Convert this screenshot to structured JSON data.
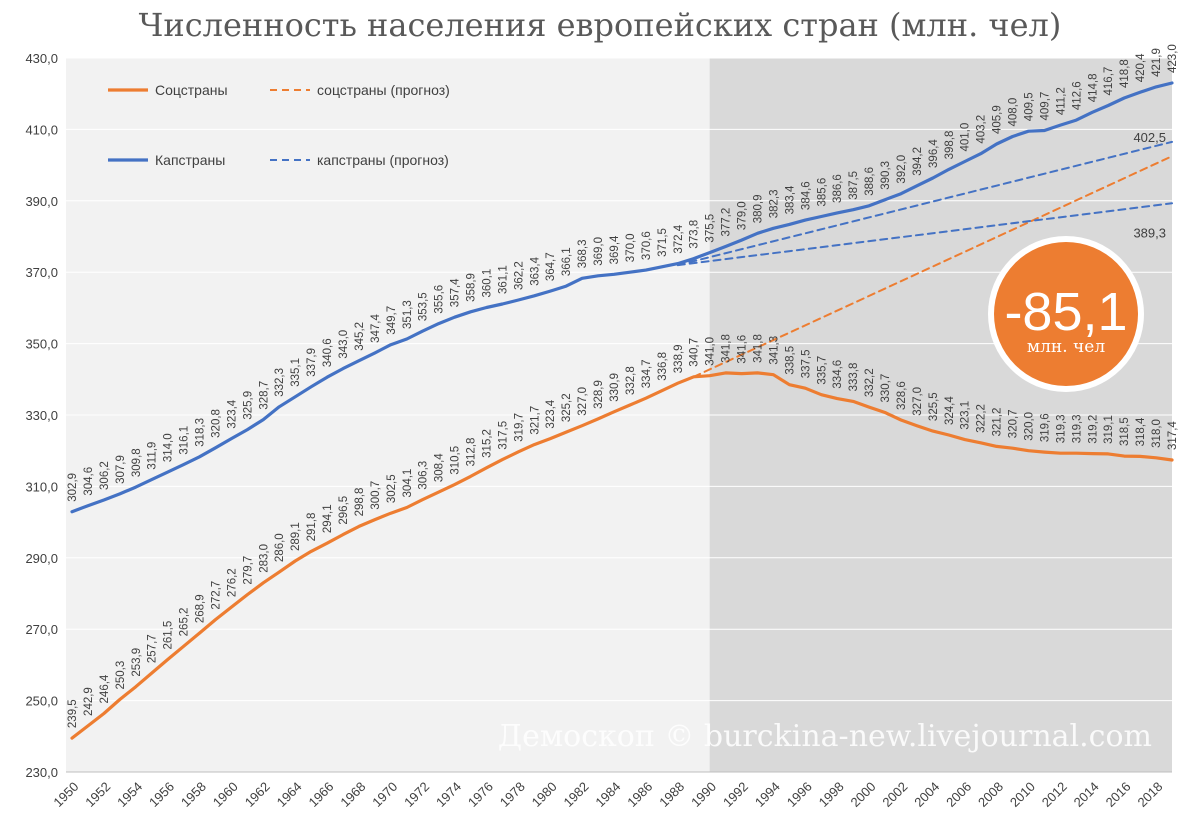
{
  "chart_data": {
    "type": "line",
    "title": "Численность населения европейских стран (млн. чел)",
    "ylim": [
      230,
      430
    ],
    "y_ticks": [
      "230,0",
      "250,0",
      "270,0",
      "290,0",
      "310,0",
      "330,0",
      "350,0",
      "370,0",
      "390,0",
      "410,0",
      "430,0"
    ],
    "x_ticks": [
      "1950",
      "1952",
      "1954",
      "1956",
      "1958",
      "1960",
      "1962",
      "1964",
      "1966",
      "1968",
      "1970",
      "1972",
      "1974",
      "1976",
      "1978",
      "1980",
      "1982",
      "1984",
      "1986",
      "1988",
      "1990",
      "1992",
      "1994",
      "1996",
      "1998",
      "2000",
      "2002",
      "2004",
      "2006",
      "2008",
      "2010",
      "2012",
      "2014",
      "2016",
      "2018"
    ],
    "x": [
      1950,
      1951,
      1952,
      1953,
      1954,
      1955,
      1956,
      1957,
      1958,
      1959,
      1960,
      1961,
      1962,
      1963,
      1964,
      1965,
      1966,
      1967,
      1968,
      1969,
      1970,
      1971,
      1972,
      1973,
      1974,
      1975,
      1976,
      1977,
      1978,
      1979,
      1980,
      1981,
      1982,
      1983,
      1984,
      1985,
      1986,
      1987,
      1988,
      1989,
      1990,
      1991,
      1992,
      1993,
      1994,
      1995,
      1996,
      1997,
      1998,
      1999,
      2000,
      2001,
      2002,
      2003,
      2004,
      2005,
      2006,
      2007,
      2008,
      2009,
      2010,
      2011,
      2012,
      2013,
      2014,
      2015,
      2016,
      2017,
      2018,
      2019
    ],
    "shaded_region": [
      1990,
      2019
    ],
    "grid": true,
    "legend_position": "top-left",
    "series": [
      {
        "name": "Соцстраны",
        "color": "#ED7D31",
        "style": "solid",
        "values": [
          239.5,
          242.9,
          246.4,
          250.3,
          253.9,
          257.7,
          261.5,
          265.2,
          268.9,
          272.7,
          276.2,
          279.7,
          283.0,
          286.0,
          289.1,
          291.8,
          294.1,
          296.5,
          298.8,
          300.7,
          302.5,
          304.1,
          306.3,
          308.4,
          310.5,
          312.8,
          315.2,
          317.5,
          319.7,
          321.7,
          323.4,
          325.2,
          327.0,
          328.9,
          330.9,
          332.8,
          334.7,
          336.8,
          338.9,
          340.7,
          341.0,
          341.8,
          341.6,
          341.8,
          341.3,
          338.5,
          337.5,
          335.7,
          334.6,
          333.8,
          332.2,
          330.7,
          328.6,
          327.0,
          325.5,
          324.4,
          323.1,
          322.2,
          321.2,
          320.7,
          320.0,
          319.6,
          319.3,
          319.3,
          319.2,
          319.1,
          318.5,
          318.4,
          318.0,
          317.4
        ],
        "labels": [
          "239,5",
          "242,9",
          "246,4",
          "250,3",
          "253,9",
          "257,7",
          "261,5",
          "265,2",
          "268,9",
          "272,7",
          "276,2",
          "279,7",
          "283,0",
          "286,0",
          "289,1",
          "291,8",
          "294,1",
          "296,5",
          "298,8",
          "300,7",
          "302,5",
          "304,1",
          "306,3",
          "308,4",
          "310,5",
          "312,8",
          "315,2",
          "317,5",
          "319,7",
          "321,7",
          "323,4",
          "325,2",
          "327,0",
          "328,9",
          "330,9",
          "332,8",
          "334,7",
          "336,8",
          "338,9",
          "340,7",
          "341,0",
          "341,8",
          "341,6",
          "341,8",
          "341,3",
          "338,5",
          "337,5",
          "335,7",
          "334,6",
          "333,8",
          "332,2",
          "330,7",
          "328,6",
          "327,0",
          "325,5",
          "324,4",
          "323,1",
          "322,2",
          "321,2",
          "320,7",
          "320,0",
          "319,6",
          "319,3",
          "319,3",
          "319,2",
          "319,1",
          "318,5",
          "318,4",
          "318,0",
          "317,4"
        ]
      },
      {
        "name": "Капстраны",
        "color": "#4472C4",
        "style": "solid",
        "values": [
          302.9,
          304.6,
          306.2,
          307.9,
          309.8,
          311.9,
          314.0,
          316.1,
          318.3,
          320.8,
          323.4,
          325.9,
          328.7,
          332.3,
          335.1,
          337.9,
          340.6,
          343.0,
          345.2,
          347.4,
          349.7,
          351.3,
          353.5,
          355.6,
          357.4,
          358.9,
          360.1,
          361.1,
          362.2,
          363.4,
          364.7,
          366.1,
          368.3,
          369.0,
          369.4,
          370.0,
          370.6,
          371.5,
          372.4,
          373.8,
          375.5,
          377.2,
          379.0,
          380.9,
          382.3,
          383.4,
          384.6,
          385.6,
          386.6,
          387.5,
          388.6,
          390.3,
          392.0,
          394.2,
          396.4,
          398.8,
          401.0,
          403.2,
          405.9,
          408.0,
          409.5,
          409.7,
          411.2,
          412.6,
          414.8,
          416.7,
          418.8,
          420.4,
          421.9,
          423.0
        ],
        "labels": [
          "302,9",
          "304,6",
          "306,2",
          "307,9",
          "309,8",
          "311,9",
          "314,0",
          "316,1",
          "318,3",
          "320,8",
          "323,4",
          "325,9",
          "328,7",
          "332,3",
          "335,1",
          "337,9",
          "340,6",
          "343,0",
          "345,2",
          "347,4",
          "349,7",
          "351,3",
          "353,5",
          "355,6",
          "357,4",
          "358,9",
          "360,1",
          "361,1",
          "362,2",
          "363,4",
          "364,7",
          "366,1",
          "368,3",
          "369,0",
          "369,4",
          "370,0",
          "370,6",
          "371,5",
          "372,4",
          "373,8",
          "375,5",
          "377,2",
          "379,0",
          "380,9",
          "382,3",
          "383,4",
          "384,6",
          "385,6",
          "386,6",
          "387,5",
          "388,6",
          "390,3",
          "392,0",
          "394,2",
          "396,4",
          "398,8",
          "401,0",
          "403,2",
          "405,9",
          "408,0",
          "409,5",
          "409,7",
          "411,2",
          "412,6",
          "414,8",
          "416,7",
          "418,8",
          "420,4",
          "421,9",
          "423,0"
        ]
      },
      {
        "name": "соцстраны (прогноз)",
        "color": "#ED7D31",
        "style": "dashed",
        "x": [
          1989,
          2019
        ],
        "values": [
          340.7,
          402.5
        ],
        "end_label": "402,5"
      },
      {
        "name": "капстраны (прогноз)",
        "color": "#4472C4",
        "style": "dashed",
        "x": [
          1988,
          2019
        ],
        "values": [
          372.0,
          406.5
        ]
      },
      {
        "name": "капстраны (прогноз)",
        "color": "#4472C4",
        "style": "dashed",
        "x": [
          1988,
          2019
        ],
        "values": [
          372.0,
          389.3
        ],
        "end_label": "389,3"
      }
    ],
    "annotation": {
      "value": "-85,1",
      "unit": "млн. чел",
      "color": "#ED7D31"
    },
    "watermark": "Демоскоп © burckina-new.livejournal.com"
  }
}
